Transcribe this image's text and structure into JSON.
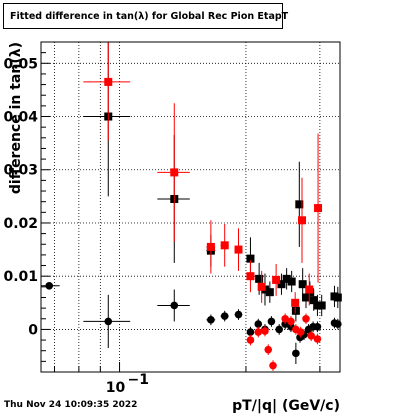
{
  "title": "Fitted difference in tan(λ) for Global Rec Pion EtapT",
  "footer_timestamp": "Thu Nov 24 10:09:35 2022",
  "chart_data": {
    "type": "scatter",
    "x_scale": "log",
    "xlabel": "pT/|q| (GeV/c)",
    "ylabel": "difference in tan(λ)",
    "xlim": [
      0.065,
      0.335
    ],
    "ylim": [
      -0.008,
      0.054
    ],
    "y_ticks": [
      0,
      0.01,
      0.02,
      0.03,
      0.04,
      0.05
    ],
    "y_tick_labels": [
      "0",
      "0.01",
      "0.02",
      "0.03",
      "0.04",
      "0.05"
    ],
    "x_tick_labels": [
      {
        "value": 0.1,
        "label": "10",
        "exponent": "−1"
      }
    ],
    "grid": true,
    "series": [
      {
        "color": "#000000",
        "marker": "square",
        "points": [
          {
            "x": 0.094,
            "y": 0.04,
            "xerr": 0.012,
            "yerr": 0.015
          },
          {
            "x": 0.135,
            "y": 0.0245,
            "xerr": 0.012,
            "yerr": 0.012
          },
          {
            "x": 0.165,
            "y": 0.0148,
            "xerr": 0.004,
            "yerr": 0.003
          },
          {
            "x": 0.205,
            "y": 0.0133,
            "xerr": 0.003,
            "yerr": 0.004
          },
          {
            "x": 0.215,
            "y": 0.0095,
            "xerr": 0.003,
            "yerr": 0.003
          },
          {
            "x": 0.222,
            "y": 0.0075,
            "xerr": 0.003,
            "yerr": 0.003
          },
          {
            "x": 0.228,
            "y": 0.007,
            "xerr": 0.003,
            "yerr": 0.002
          },
          {
            "x": 0.243,
            "y": 0.0085,
            "xerr": 0.003,
            "yerr": 0.002
          },
          {
            "x": 0.25,
            "y": 0.0095,
            "xerr": 0.003,
            "yerr": 0.002
          },
          {
            "x": 0.257,
            "y": 0.009,
            "xerr": 0.003,
            "yerr": 0.002
          },
          {
            "x": 0.263,
            "y": 0.0035,
            "xerr": 0.003,
            "yerr": 0.002
          },
          {
            "x": 0.268,
            "y": 0.0235,
            "xerr": 0.002,
            "yerr": 0.008
          },
          {
            "x": 0.273,
            "y": 0.0085,
            "xerr": 0.002,
            "yerr": 0.003
          },
          {
            "x": 0.278,
            "y": 0.006,
            "xerr": 0.002,
            "yerr": 0.002
          },
          {
            "x": 0.284,
            "y": 0.007,
            "xerr": 0.002,
            "yerr": 0.002
          },
          {
            "x": 0.29,
            "y": 0.0055,
            "xerr": 0.002,
            "yerr": 0.002
          },
          {
            "x": 0.296,
            "y": 0.0045,
            "xerr": 0.002,
            "yerr": 0.002
          },
          {
            "x": 0.303,
            "y": 0.0045,
            "xerr": 0.002,
            "yerr": 0.002
          },
          {
            "x": 0.325,
            "y": 0.0062,
            "xerr": 0.004,
            "yerr": 0.002
          },
          {
            "x": 0.331,
            "y": 0.006,
            "xerr": 0.003,
            "yerr": 0.002
          }
        ]
      },
      {
        "color": "#ff0000",
        "marker": "square",
        "points": [
          {
            "x": 0.094,
            "y": 0.0465,
            "xerr": 0.012,
            "yerr": 0.011
          },
          {
            "x": 0.135,
            "y": 0.0295,
            "xerr": 0.012,
            "yerr": 0.013
          },
          {
            "x": 0.165,
            "y": 0.0155,
            "xerr": 0.004,
            "yerr": 0.005
          },
          {
            "x": 0.178,
            "y": 0.0158,
            "xerr": 0.004,
            "yerr": 0.004
          },
          {
            "x": 0.192,
            "y": 0.015,
            "xerr": 0.004,
            "yerr": 0.004
          },
          {
            "x": 0.205,
            "y": 0.01,
            "xerr": 0.003,
            "yerr": 0.003
          },
          {
            "x": 0.218,
            "y": 0.008,
            "xerr": 0.003,
            "yerr": 0.003
          },
          {
            "x": 0.236,
            "y": 0.0093,
            "xerr": 0.003,
            "yerr": 0.003
          },
          {
            "x": 0.262,
            "y": 0.005,
            "xerr": 0.003,
            "yerr": 0.002
          },
          {
            "x": 0.272,
            "y": 0.0205,
            "xerr": 0.002,
            "yerr": 0.008
          },
          {
            "x": 0.283,
            "y": 0.0075,
            "xerr": 0.002,
            "yerr": 0.003
          },
          {
            "x": 0.297,
            "y": 0.0228,
            "xerr": 0.003,
            "yerr": 0.014
          }
        ]
      },
      {
        "color": "#000000",
        "marker": "circle",
        "points": [
          {
            "x": 0.068,
            "y": 0.0082,
            "xerr": 0.004,
            "yerr": 0.0
          },
          {
            "x": 0.094,
            "y": 0.0015,
            "xerr": 0.012,
            "yerr": 0.005
          },
          {
            "x": 0.135,
            "y": 0.0045,
            "xerr": 0.012,
            "yerr": 0.003
          },
          {
            "x": 0.165,
            "y": 0.0018,
            "xerr": 0.004,
            "yerr": 0.001
          },
          {
            "x": 0.178,
            "y": 0.0025,
            "xerr": 0.004,
            "yerr": 0.001
          },
          {
            "x": 0.192,
            "y": 0.0028,
            "xerr": 0.004,
            "yerr": 0.001
          },
          {
            "x": 0.205,
            "y": -0.0005,
            "xerr": 0.003,
            "yerr": 0.001
          },
          {
            "x": 0.214,
            "y": 0.001,
            "xerr": 0.003,
            "yerr": 0.001
          },
          {
            "x": 0.222,
            "y": 0.0,
            "xerr": 0.003,
            "yerr": 0.001
          },
          {
            "x": 0.23,
            "y": 0.0015,
            "xerr": 0.003,
            "yerr": 0.001
          },
          {
            "x": 0.24,
            "y": 0.0,
            "xerr": 0.003,
            "yerr": 0.001
          },
          {
            "x": 0.248,
            "y": 0.001,
            "xerr": 0.003,
            "yerr": 0.001
          },
          {
            "x": 0.256,
            "y": 0.0005,
            "xerr": 0.003,
            "yerr": 0.001
          },
          {
            "x": 0.263,
            "y": -0.0045,
            "xerr": 0.002,
            "yerr": 0.002
          },
          {
            "x": 0.269,
            "y": -0.0015,
            "xerr": 0.002,
            "yerr": 0.001
          },
          {
            "x": 0.275,
            "y": -0.001,
            "xerr": 0.002,
            "yerr": 0.001
          },
          {
            "x": 0.282,
            "y": 0.0,
            "xerr": 0.002,
            "yerr": 0.001
          },
          {
            "x": 0.289,
            "y": 0.0005,
            "xerr": 0.002,
            "yerr": 0.001
          },
          {
            "x": 0.296,
            "y": 0.0005,
            "xerr": 0.002,
            "yerr": 0.001
          },
          {
            "x": 0.325,
            "y": 0.0012,
            "xerr": 0.004,
            "yerr": 0.001
          },
          {
            "x": 0.331,
            "y": 0.001,
            "xerr": 0.003,
            "yerr": 0.001
          }
        ]
      },
      {
        "color": "#ff0000",
        "marker": "circle",
        "points": [
          {
            "x": 0.205,
            "y": -0.002,
            "xerr": 0.003,
            "yerr": 0.001
          },
          {
            "x": 0.214,
            "y": -0.0005,
            "xerr": 0.003,
            "yerr": 0.001
          },
          {
            "x": 0.222,
            "y": -0.0003,
            "xerr": 0.003,
            "yerr": 0.001
          },
          {
            "x": 0.226,
            "y": -0.0038,
            "xerr": 0.003,
            "yerr": 0.001
          },
          {
            "x": 0.232,
            "y": -0.0068,
            "xerr": 0.003,
            "yerr": 0.001
          },
          {
            "x": 0.248,
            "y": 0.002,
            "xerr": 0.003,
            "yerr": 0.001
          },
          {
            "x": 0.256,
            "y": 0.0015,
            "xerr": 0.003,
            "yerr": 0.001
          },
          {
            "x": 0.263,
            "y": 0.0,
            "xerr": 0.002,
            "yerr": 0.001
          },
          {
            "x": 0.27,
            "y": -0.0005,
            "xerr": 0.002,
            "yerr": 0.001
          },
          {
            "x": 0.278,
            "y": 0.002,
            "xerr": 0.002,
            "yerr": 0.001
          },
          {
            "x": 0.286,
            "y": -0.0012,
            "xerr": 0.002,
            "yerr": 0.001
          },
          {
            "x": 0.296,
            "y": -0.0018,
            "xerr": 0.002,
            "yerr": 0.001
          }
        ]
      }
    ]
  }
}
